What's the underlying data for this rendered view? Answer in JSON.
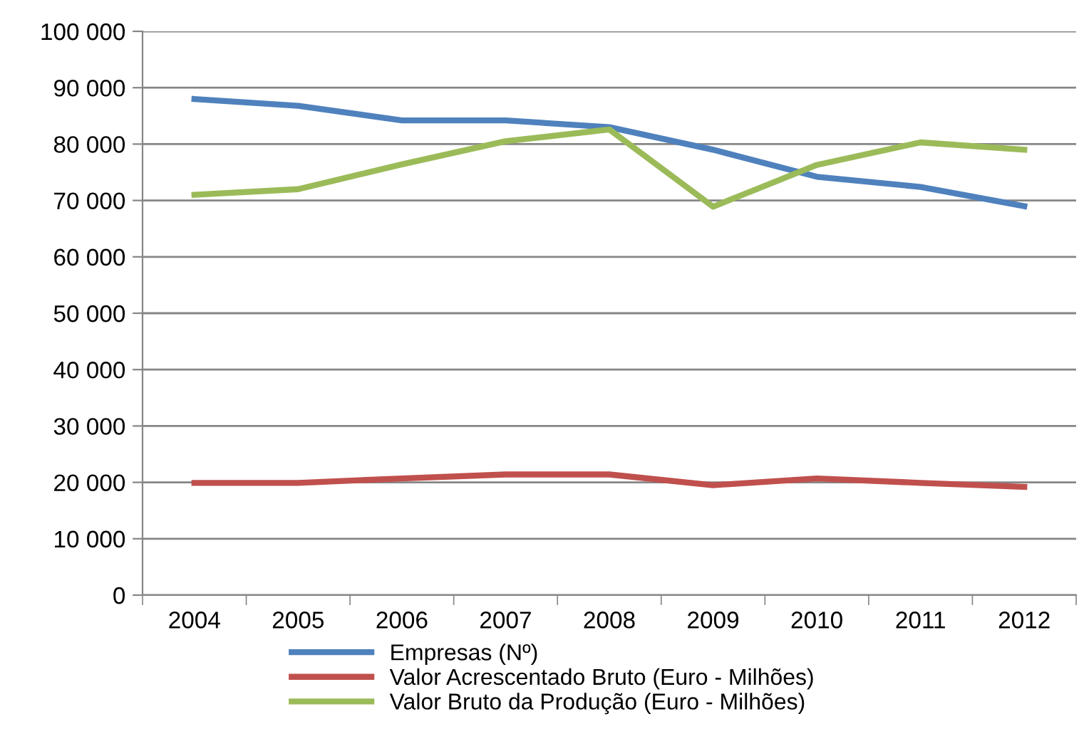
{
  "chart_data": {
    "type": "line",
    "categories": [
      "2004",
      "2005",
      "2006",
      "2007",
      "2008",
      "2009",
      "2010",
      "2011",
      "2012"
    ],
    "series": [
      {
        "name": "Empresas (Nº)",
        "color": "#4f81bd",
        "values": [
          88000,
          86800,
          84200,
          84200,
          83000,
          79000,
          74200,
          72400,
          69000
        ]
      },
      {
        "name": "Valor Acrescentado Bruto (Euro - Milhões)",
        "color": "#c0504d",
        "values": [
          19900,
          19900,
          20700,
          21400,
          21400,
          19500,
          20700,
          19900,
          19200
        ]
      },
      {
        "name": "Valor Bruto da Produção (Euro - Milhões)",
        "color": "#9bbb59",
        "values": [
          71000,
          72000,
          76400,
          80500,
          82600,
          68900,
          76300,
          80300,
          79000
        ]
      }
    ],
    "ylim": [
      0,
      100000
    ],
    "yticks": [
      {
        "value": 0,
        "label": "0"
      },
      {
        "value": 10000,
        "label": "10 000"
      },
      {
        "value": 20000,
        "label": "20 000"
      },
      {
        "value": 30000,
        "label": "30 000"
      },
      {
        "value": 40000,
        "label": "40 000"
      },
      {
        "value": 50000,
        "label": "50 000"
      },
      {
        "value": 60000,
        "label": "60 000"
      },
      {
        "value": 70000,
        "label": "70 000"
      },
      {
        "value": 80000,
        "label": "80 000"
      },
      {
        "value": 90000,
        "label": "90 000"
      },
      {
        "value": 100000,
        "label": "100 000"
      }
    ],
    "grid": "y",
    "legend": "bottom",
    "marker": "none",
    "line_style": "solid"
  }
}
